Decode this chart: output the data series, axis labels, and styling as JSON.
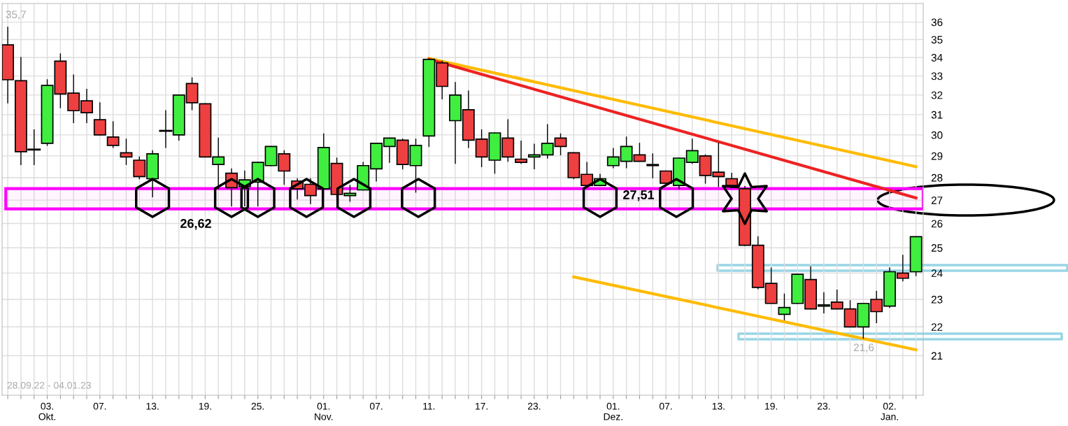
{
  "chart_data": {
    "type": "candlestick",
    "categories": [
      null,
      null,
      null,
      "03.\nOkt.",
      null,
      null,
      null,
      "07.",
      null,
      null,
      null,
      "13.",
      null,
      null,
      null,
      "19.",
      null,
      null,
      null,
      "25.",
      null,
      null,
      null,
      null,
      "01.\nNov.",
      null,
      null,
      null,
      "07.",
      null,
      null,
      null,
      "11.",
      null,
      null,
      null,
      "17.",
      null,
      null,
      null,
      "23.",
      null,
      null,
      null,
      null,
      null,
      "01.\nDez.",
      null,
      null,
      null,
      "07.",
      null,
      null,
      null,
      "13.",
      null,
      null,
      null,
      "19.",
      null,
      null,
      null,
      "23.",
      null,
      null,
      null,
      null,
      "02.\nJan.",
      null,
      null
    ],
    "ohlc": [
      [
        34.7,
        35.7,
        31.6,
        32.8
      ],
      [
        32.75,
        34.0,
        28.6,
        29.2
      ],
      [
        29.3,
        30.25,
        28.6,
        29.3
      ],
      [
        29.6,
        32.8,
        29.5,
        32.5
      ],
      [
        33.8,
        34.2,
        31.35,
        32.05
      ],
      [
        32.1,
        33.05,
        30.6,
        31.2
      ],
      [
        31.7,
        32.3,
        30.6,
        31.1
      ],
      [
        30.75,
        31.6,
        30.0,
        30.0
      ],
      [
        29.9,
        30.65,
        29.4,
        29.5
      ],
      [
        29.15,
        29.8,
        28.6,
        28.95
      ],
      [
        28.8,
        28.95,
        27.95,
        28.05
      ],
      [
        27.95,
        29.25,
        27.15,
        29.1
      ],
      [
        30.2,
        31.2,
        29.4,
        30.2
      ],
      [
        30.0,
        32.0,
        29.75,
        32.0
      ],
      [
        32.6,
        32.9,
        31.25,
        31.6
      ],
      [
        31.55,
        31.55,
        28.95,
        28.95
      ],
      [
        28.6,
        29.85,
        27.5,
        28.95
      ],
      [
        28.2,
        28.4,
        26.75,
        27.55
      ],
      [
        27.6,
        28.3,
        26.75,
        27.9
      ],
      [
        27.8,
        28.7,
        26.75,
        28.7
      ],
      [
        28.55,
        29.45,
        28.55,
        29.45
      ],
      [
        29.1,
        29.25,
        27.7,
        28.3
      ],
      [
        27.85,
        27.95,
        27.05,
        27.5
      ],
      [
        27.7,
        27.95,
        26.85,
        27.2
      ],
      [
        27.5,
        30.05,
        27.5,
        29.4
      ],
      [
        28.65,
        28.9,
        27.1,
        27.25
      ],
      [
        27.2,
        27.65,
        26.95,
        27.3
      ],
      [
        27.45,
        28.7,
        27.45,
        28.55
      ],
      [
        28.4,
        29.6,
        27.85,
        29.6
      ],
      [
        29.45,
        29.85,
        28.7,
        29.85
      ],
      [
        29.75,
        29.8,
        28.4,
        28.6
      ],
      [
        28.55,
        29.8,
        27.35,
        29.5
      ],
      [
        29.95,
        33.9,
        29.45,
        33.9
      ],
      [
        33.7,
        33.8,
        31.8,
        32.45
      ],
      [
        30.7,
        32.65,
        28.65,
        32.0
      ],
      [
        31.25,
        32.2,
        29.4,
        29.75
      ],
      [
        29.8,
        30.25,
        28.5,
        28.95
      ],
      [
        28.8,
        30.1,
        28.2,
        30.1
      ],
      [
        29.85,
        30.75,
        28.75,
        28.95
      ],
      [
        28.85,
        29.7,
        28.65,
        28.7
      ],
      [
        28.95,
        29.55,
        28.4,
        29.05
      ],
      [
        29.05,
        30.5,
        28.9,
        29.6
      ],
      [
        29.85,
        30.05,
        29.05,
        29.45
      ],
      [
        29.15,
        29.15,
        27.95,
        28.0
      ],
      [
        28.15,
        28.7,
        27.65,
        27.65
      ],
      [
        27.65,
        28.15,
        27.65,
        27.95
      ],
      [
        28.55,
        29.35,
        28.45,
        28.95
      ],
      [
        28.75,
        29.9,
        28.45,
        29.45
      ],
      [
        29.05,
        29.6,
        28.75,
        28.75
      ],
      [
        28.55,
        29.1,
        28.0,
        28.6
      ],
      [
        28.3,
        28.3,
        27.75,
        27.75
      ],
      [
        27.65,
        28.9,
        27.5,
        28.9
      ],
      [
        28.7,
        29.8,
        28.65,
        29.25
      ],
      [
        29.0,
        29.05,
        27.75,
        28.1
      ],
      [
        28.25,
        29.6,
        27.6,
        28.05
      ],
      [
        27.95,
        28.2,
        27.55,
        27.65
      ],
      [
        27.5,
        27.6,
        25.1,
        25.1
      ],
      [
        25.1,
        25.45,
        23.4,
        23.45
      ],
      [
        23.6,
        24.2,
        22.85,
        22.85
      ],
      [
        22.45,
        23.2,
        22.25,
        22.7
      ],
      [
        22.85,
        23.95,
        22.85,
        23.95
      ],
      [
        23.75,
        24.25,
        22.65,
        22.65
      ],
      [
        22.75,
        23.25,
        22.5,
        22.8
      ],
      [
        22.9,
        23.35,
        22.65,
        22.65
      ],
      [
        22.65,
        22.95,
        22.0,
        22.0
      ],
      [
        22.0,
        22.85,
        21.6,
        22.85
      ],
      [
        23.0,
        23.3,
        22.15,
        22.55
      ],
      [
        22.75,
        24.2,
        22.7,
        24.05
      ],
      [
        24.0,
        24.7,
        23.7,
        23.8
      ],
      [
        24.05,
        25.45,
        23.9,
        25.45
      ]
    ],
    "colors": [
      "#ee4040",
      "#ee4040",
      "#000000",
      "#40ee40",
      "#ee4040",
      "#ee4040",
      "#ee4040",
      "#ee4040",
      "#ee4040",
      "#ee4040",
      "#ee4040",
      "#40ee40",
      "#000000",
      "#40ee40",
      "#ee4040",
      "#ee4040",
      "#40ee40",
      "#ee4040",
      "#40ee40",
      "#40ee40",
      "#40ee40",
      "#ee4040",
      "#ee4040",
      "#ee4040",
      "#40ee40",
      "#ee4040",
      "#40ee40",
      "#40ee40",
      "#40ee40",
      "#40ee40",
      "#ee4040",
      "#40ee40",
      "#40ee40",
      "#ee4040",
      "#40ee40",
      "#ee4040",
      "#ee4040",
      "#40ee40",
      "#ee4040",
      "#ee4040",
      "#40ee40",
      "#40ee40",
      "#ee4040",
      "#ee4040",
      "#ee4040",
      "#40ee40",
      "#40ee40",
      "#40ee40",
      "#ee4040",
      "#40ee40",
      "#ee4040",
      "#40ee40",
      "#40ee40",
      "#ee4040",
      "#ee4040",
      "#ee4040",
      "#ee4040",
      "#ee4040",
      "#ee4040",
      "#40ee40",
      "#40ee40",
      "#ee4040",
      "#40ee40",
      "#ee4040",
      "#ee4040",
      "#40ee40",
      "#ee4040",
      "#40ee40",
      "#ee4040",
      "#40ee40"
    ],
    "series": [
      {
        "type": "line",
        "color": "#ffbb00",
        "values": [
          null,
          null,
          null,
          null,
          null,
          null,
          null,
          null,
          null,
          null,
          null,
          null,
          null,
          null,
          null,
          null,
          null,
          null,
          null,
          null,
          null,
          null,
          null,
          null,
          null,
          null,
          null,
          null,
          null,
          null,
          null,
          null,
          33.95,
          null,
          null,
          null,
          null,
          null,
          null,
          null,
          null,
          null,
          null,
          null,
          null,
          null,
          null,
          null,
          null,
          null,
          null,
          null,
          null,
          null,
          null,
          null,
          null,
          null,
          null,
          null,
          null,
          null,
          null,
          null,
          null,
          null,
          null,
          null,
          null,
          28.5
        ]
      },
      {
        "type": "line",
        "color": "#ee2222",
        "values": [
          null,
          null,
          null,
          null,
          null,
          null,
          null,
          null,
          null,
          null,
          null,
          null,
          null,
          null,
          null,
          null,
          null,
          null,
          null,
          null,
          null,
          null,
          null,
          null,
          null,
          null,
          null,
          null,
          null,
          null,
          null,
          null,
          33.9,
          null,
          null,
          null,
          null,
          null,
          null,
          null,
          null,
          null,
          null,
          null,
          null,
          null,
          null,
          null,
          null,
          null,
          null,
          null,
          null,
          null,
          null,
          null,
          null,
          null,
          null,
          null,
          null,
          null,
          null,
          null,
          null,
          null,
          null,
          null,
          null,
          27.1
        ]
      },
      {
        "type": "line",
        "color": "#ffbb00",
        "values": [
          null,
          null,
          null,
          null,
          null,
          null,
          null,
          null,
          null,
          null,
          null,
          null,
          null,
          null,
          null,
          null,
          null,
          null,
          null,
          null,
          null,
          null,
          null,
          null,
          null,
          null,
          null,
          null,
          null,
          null,
          null,
          null,
          null,
          null,
          null,
          null,
          null,
          null,
          null,
          null,
          null,
          null,
          null,
          23.85,
          null,
          null,
          null,
          null,
          null,
          null,
          null,
          null,
          null,
          null,
          null,
          null,
          null,
          null,
          null,
          null,
          null,
          null,
          null,
          null,
          null,
          null,
          null,
          null,
          null,
          21.2
        ]
      }
    ],
    "bands": [
      {
        "axis": "y",
        "from": 26.62,
        "to": 27.51,
        "color": "#ff00ff"
      }
    ],
    "annotations": [
      "35,7",
      "21,6",
      "26,62",
      "27,51",
      "28.09.22 - 04.01.23"
    ],
    "log": true,
    "ylim": [
      19.7,
      37.1
    ],
    "yticks": [
      21,
      22,
      23,
      24,
      25,
      26,
      27,
      28,
      29,
      30,
      31,
      32,
      33,
      34,
      35,
      36
    ],
    "grid": true
  }
}
